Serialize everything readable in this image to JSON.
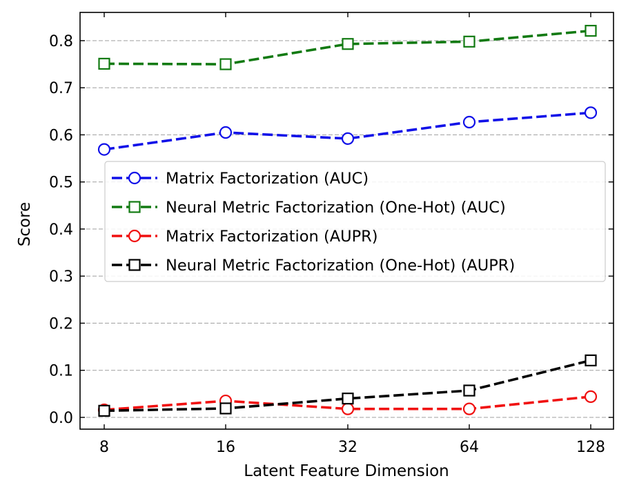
{
  "chart_data": {
    "type": "line",
    "xlabel": "Latent Feature Dimension",
    "ylabel": "Score",
    "categories": [
      "8",
      "16",
      "32",
      "64",
      "128"
    ],
    "ylim": [
      -0.025,
      0.86
    ],
    "yticks": [
      0.0,
      0.1,
      0.2,
      0.3,
      0.4,
      0.5,
      0.6,
      0.7,
      0.8
    ],
    "ytick_labels": [
      "0.0",
      "0.1",
      "0.2",
      "0.3",
      "0.4",
      "0.5",
      "0.6",
      "0.7",
      "0.8"
    ],
    "grid": "y-dashed",
    "legend_position": "center-right",
    "series": [
      {
        "name": "Matrix Factorization (AUC)",
        "color": "#1010e8",
        "marker": "circle",
        "values": [
          0.569,
          0.605,
          0.592,
          0.627,
          0.647
        ]
      },
      {
        "name": "Neural Metric Factorization (One-Hot) (AUC)",
        "color": "#127a12",
        "marker": "square",
        "values": [
          0.751,
          0.75,
          0.793,
          0.798,
          0.821
        ]
      },
      {
        "name": "Matrix Factorization (AUPR)",
        "color": "#f01010",
        "marker": "circle",
        "values": [
          0.016,
          0.035,
          0.018,
          0.018,
          0.044
        ]
      },
      {
        "name": "Neural Metric Factorization (One-Hot) (AUPR)",
        "color": "#000000",
        "marker": "square",
        "values": [
          0.014,
          0.019,
          0.04,
          0.057,
          0.121
        ]
      }
    ]
  }
}
